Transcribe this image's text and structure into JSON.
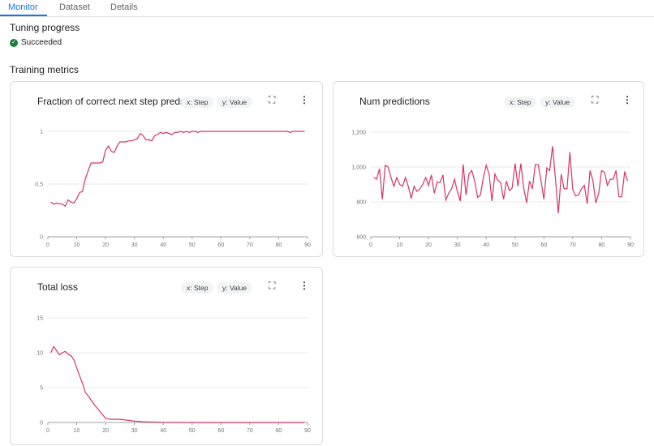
{
  "tabs": [
    {
      "label": "Monitor",
      "active": true
    },
    {
      "label": "Dataset"
    },
    {
      "label": "Details"
    }
  ],
  "tuning": {
    "heading": "Tuning progress",
    "status": "Succeeded",
    "status_icon": "check-circle-icon",
    "status_color": "#188038"
  },
  "metrics": {
    "heading": "Training metrics"
  },
  "accent": "#1a73e8",
  "line_color": "#d6336c",
  "chart_data": [
    {
      "type": "line",
      "title": "Fraction of correct next step preds",
      "x_chip": "x: Step",
      "y_chip": "y: Value",
      "xlim": [
        0,
        90
      ],
      "ylim": [
        0,
        1
      ],
      "xticks": [
        "0",
        "10",
        "20",
        "30",
        "40",
        "50",
        "60",
        "70",
        "80",
        "90"
      ],
      "yticks": [
        "0",
        "0.5",
        "1"
      ],
      "grid": true,
      "x": [
        1,
        2,
        3,
        4,
        5,
        6,
        7,
        8,
        9,
        10,
        11,
        12,
        13,
        14,
        15,
        16,
        17,
        18,
        19,
        20,
        21,
        22,
        23,
        24,
        25,
        26,
        27,
        28,
        29,
        30,
        31,
        32,
        33,
        34,
        35,
        36,
        37,
        38,
        39,
        40,
        41,
        42,
        43,
        44,
        45,
        46,
        47,
        48,
        49,
        50,
        51,
        52,
        53,
        54,
        55,
        56,
        57,
        58,
        59,
        60,
        61,
        62,
        63,
        64,
        65,
        66,
        67,
        68,
        69,
        70,
        71,
        72,
        73,
        74,
        75,
        76,
        77,
        78,
        79,
        80,
        81,
        82,
        83,
        84,
        85,
        86,
        87,
        88,
        89
      ],
      "values": [
        0.33,
        0.31,
        0.32,
        0.315,
        0.31,
        0.29,
        0.35,
        0.33,
        0.32,
        0.36,
        0.42,
        0.43,
        0.55,
        0.63,
        0.7,
        0.7,
        0.7,
        0.7,
        0.71,
        0.82,
        0.86,
        0.81,
        0.8,
        0.86,
        0.9,
        0.9,
        0.9,
        0.91,
        0.91,
        0.92,
        0.93,
        0.98,
        0.96,
        0.92,
        0.92,
        0.91,
        0.96,
        0.97,
        0.99,
        0.98,
        0.99,
        0.98,
        0.97,
        0.99,
        0.99,
        1,
        0.99,
        1,
        0.99,
        1,
        1,
        0.99,
        1,
        1,
        1,
        1,
        1,
        1,
        1,
        1,
        1,
        1,
        1,
        1,
        1,
        1,
        1,
        1,
        1,
        1,
        1,
        1,
        1,
        1,
        1,
        1,
        1,
        1,
        1,
        1,
        1,
        1,
        1,
        0.99,
        1,
        1,
        1,
        1,
        1
      ]
    },
    {
      "type": "line",
      "title": "Num predictions",
      "x_chip": "x: Step",
      "y_chip": "y: Value",
      "xlim": [
        0,
        90
      ],
      "ylim": [
        600,
        1200
      ],
      "xticks": [
        "0",
        "10",
        "20",
        "30",
        "40",
        "50",
        "60",
        "70",
        "80",
        "90"
      ],
      "yticks": [
        "600",
        "800",
        "1,000",
        "1,200"
      ],
      "grid": true,
      "x": [
        1,
        2,
        3,
        4,
        5,
        6,
        7,
        8,
        9,
        10,
        11,
        12,
        13,
        14,
        15,
        16,
        17,
        18,
        19,
        20,
        21,
        22,
        23,
        24,
        25,
        26,
        27,
        28,
        29,
        30,
        31,
        32,
        33,
        34,
        35,
        36,
        37,
        38,
        39,
        40,
        41,
        42,
        43,
        44,
        45,
        46,
        47,
        48,
        49,
        50,
        51,
        52,
        53,
        54,
        55,
        56,
        57,
        58,
        59,
        60,
        61,
        62,
        63,
        64,
        65,
        66,
        67,
        68,
        69,
        70,
        71,
        72,
        73,
        74,
        75,
        76,
        77,
        78,
        79,
        80,
        81,
        82,
        83,
        84,
        85,
        86,
        87,
        88,
        89
      ],
      "values": [
        940,
        930,
        990,
        815,
        1010,
        1000,
        940,
        890,
        940,
        900,
        890,
        940,
        890,
        820,
        890,
        860,
        875,
        900,
        940,
        895,
        955,
        850,
        915,
        910,
        955,
        810,
        850,
        875,
        930,
        860,
        805,
        1015,
        840,
        960,
        980,
        920,
        825,
        840,
        940,
        1010,
        960,
        805,
        960,
        925,
        910,
        815,
        920,
        865,
        880,
        1020,
        890,
        1020,
        880,
        795,
        920,
        875,
        1015,
        1015,
        920,
        815,
        995,
        980,
        1120,
        930,
        735,
        960,
        875,
        875,
        1085,
        870,
        835,
        840,
        875,
        895,
        790,
        980,
        920,
        795,
        850,
        980,
        970,
        895,
        930,
        930,
        980,
        830,
        830,
        975,
        920
      ]
    },
    {
      "type": "line",
      "title": "Total loss",
      "x_chip": "x: Step",
      "y_chip": "y: Value",
      "xlim": [
        0,
        90
      ],
      "ylim": [
        0,
        15
      ],
      "xticks": [
        "0",
        "10",
        "20",
        "30",
        "40",
        "50",
        "60",
        "70",
        "80",
        "90"
      ],
      "yticks": [
        "0",
        "5",
        "10",
        "15"
      ],
      "grid": true,
      "x": [
        1,
        2,
        3,
        4,
        5,
        6,
        7,
        8,
        9,
        10,
        11,
        12,
        13,
        14,
        15,
        16,
        17,
        18,
        19,
        20,
        21,
        22,
        23,
        24,
        25,
        26,
        27,
        28,
        29,
        30,
        31,
        32,
        33,
        35,
        38,
        40,
        45,
        50,
        60,
        70,
        80,
        89
      ],
      "values": [
        10,
        10.9,
        10.3,
        9.7,
        10,
        10.2,
        9.8,
        9.6,
        9,
        7.8,
        6.7,
        5.6,
        4.3,
        3.8,
        3.2,
        2.6,
        2.1,
        1.6,
        1.1,
        0.6,
        0.5,
        0.45,
        0.45,
        0.45,
        0.45,
        0.42,
        0.35,
        0.3,
        0.25,
        0.2,
        0.18,
        0.15,
        0.1,
        0.08,
        0.05,
        0.02,
        0.01,
        0,
        0,
        0,
        0,
        0
      ]
    }
  ]
}
